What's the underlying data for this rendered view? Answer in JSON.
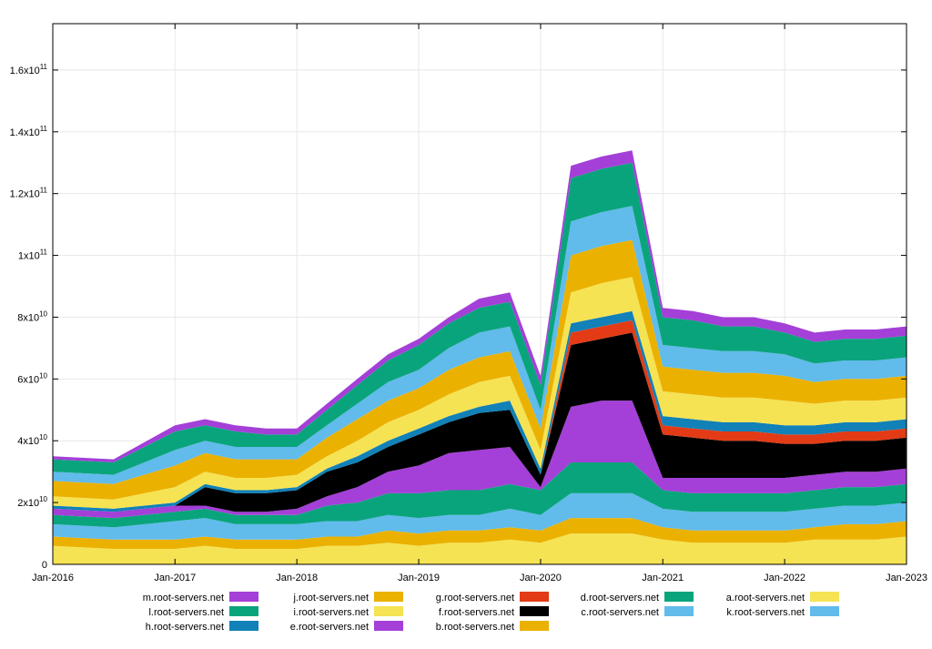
{
  "chart_data": {
    "type": "area",
    "stacked": true,
    "title": "",
    "xlabel": "",
    "ylabel": "",
    "xlim": [
      "2016-01-01",
      "2023-01-01"
    ],
    "ylim": [
      0,
      175000000000
    ],
    "grid": true,
    "legend_position": "bottom",
    "x_ticks": [
      {
        "date": "2016-01-01",
        "label": "Jan-2016"
      },
      {
        "date": "2017-01-01",
        "label": "Jan-2017"
      },
      {
        "date": "2018-01-01",
        "label": "Jan-2018"
      },
      {
        "date": "2019-01-01",
        "label": "Jan-2019"
      },
      {
        "date": "2020-01-01",
        "label": "Jan-2020"
      },
      {
        "date": "2021-01-01",
        "label": "Jan-2021"
      },
      {
        "date": "2022-01-01",
        "label": "Jan-2022"
      },
      {
        "date": "2023-01-01",
        "label": "Jan-2023"
      }
    ],
    "y_ticks": [
      {
        "value": 0,
        "mantissa": "0",
        "exponent": ""
      },
      {
        "value": 20000000000,
        "mantissa": "2x10",
        "exponent": "10"
      },
      {
        "value": 40000000000,
        "mantissa": "4x10",
        "exponent": "10"
      },
      {
        "value": 60000000000,
        "mantissa": "6x10",
        "exponent": "10"
      },
      {
        "value": 80000000000,
        "mantissa": "8x10",
        "exponent": "10"
      },
      {
        "value": 100000000000,
        "mantissa": "1x10",
        "exponent": "11"
      },
      {
        "value": 120000000000,
        "mantissa": "1.2x10",
        "exponent": "11"
      },
      {
        "value": 140000000000,
        "mantissa": "1.4x10",
        "exponent": "11"
      },
      {
        "value": 160000000000,
        "mantissa": "1.6x10",
        "exponent": "11"
      }
    ],
    "x": [
      "2016-01-01",
      "2016-07-01",
      "2017-01-01",
      "2017-04-01",
      "2017-07-01",
      "2017-10-01",
      "2018-01-01",
      "2018-04-01",
      "2018-07-01",
      "2018-10-01",
      "2019-01-01",
      "2019-04-01",
      "2019-07-01",
      "2019-10-01",
      "2020-01-01",
      "2020-04-01",
      "2020-07-01",
      "2020-10-01",
      "2021-01-01",
      "2021-04-01",
      "2021-07-01",
      "2021-10-01",
      "2022-01-01",
      "2022-04-01",
      "2022-07-01",
      "2022-10-01",
      "2023-01-01"
    ],
    "series": [
      {
        "name": "a.root-servers.net",
        "color": "#f5e354",
        "values": [
          6,
          5,
          5,
          6,
          5,
          5,
          5,
          6,
          6,
          7,
          6,
          7,
          7,
          8,
          7,
          10,
          10,
          10,
          8,
          7,
          7,
          7,
          7,
          8,
          8,
          8,
          9
        ]
      },
      {
        "name": "b.root-servers.net",
        "color": "#ebb100",
        "values": [
          3,
          3,
          3,
          3,
          3,
          3,
          3,
          3,
          3,
          4,
          4,
          4,
          4,
          4,
          4,
          5,
          5,
          5,
          4,
          4,
          4,
          4,
          4,
          4,
          5,
          5,
          5
        ]
      },
      {
        "name": "c.root-servers.net",
        "color": "#61bbeb",
        "values": [
          4,
          4,
          6,
          6,
          5,
          5,
          5,
          5,
          5,
          5,
          5,
          5,
          5,
          6,
          5,
          8,
          8,
          8,
          6,
          6,
          6,
          6,
          6,
          6,
          6,
          6,
          6
        ]
      },
      {
        "name": "d.root-servers.net",
        "color": "#0aa47c",
        "values": [
          3,
          3,
          3,
          3,
          3,
          3,
          3,
          5,
          6,
          7,
          8,
          8,
          8,
          8,
          8,
          10,
          10,
          10,
          6,
          6,
          6,
          6,
          6,
          6,
          6,
          6,
          6
        ]
      },
      {
        "name": "e.root-servers.net",
        "color": "#a43fd8",
        "values": [
          2,
          2,
          2,
          1,
          1,
          1,
          2,
          3,
          5,
          7,
          9,
          12,
          13,
          12,
          1,
          18,
          20,
          20,
          4,
          5,
          5,
          5,
          5,
          5,
          5,
          5,
          5
        ]
      },
      {
        "name": "f.root-servers.net",
        "color": "#000000",
        "values": [
          0,
          0,
          0,
          6,
          6,
          6,
          6,
          8,
          8,
          8,
          10,
          10,
          12,
          12,
          4,
          20,
          20,
          22,
          14,
          13,
          12,
          12,
          11,
          10,
          10,
          10,
          10
        ]
      },
      {
        "name": "g.root-servers.net",
        "color": "#e23b16",
        "values": [
          0,
          0,
          0,
          0,
          0,
          0,
          0,
          0,
          0,
          0,
          0,
          0,
          0,
          0,
          0,
          4,
          4,
          4,
          3,
          3,
          3,
          3,
          3,
          3,
          3,
          3,
          3
        ]
      },
      {
        "name": "h.root-servers.net",
        "color": "#1181b8",
        "values": [
          1,
          1,
          1,
          1,
          1,
          1,
          1,
          1,
          2,
          2,
          2,
          2,
          2,
          3,
          2,
          3,
          3,
          3,
          3,
          3,
          3,
          3,
          3,
          3,
          3,
          3,
          3
        ]
      },
      {
        "name": "i.root-servers.net",
        "color": "#f5e354",
        "values": [
          3,
          3,
          5,
          4,
          4,
          4,
          4,
          4,
          5,
          6,
          6,
          7,
          8,
          8,
          6,
          10,
          11,
          11,
          8,
          8,
          8,
          8,
          8,
          7,
          7,
          7,
          7
        ]
      },
      {
        "name": "j.root-servers.net",
        "color": "#ebb100",
        "values": [
          5,
          5,
          7,
          6,
          6,
          6,
          5,
          6,
          7,
          7,
          7,
          8,
          8,
          8,
          7,
          12,
          12,
          12,
          8,
          8,
          8,
          8,
          8,
          7,
          7,
          7,
          7
        ]
      },
      {
        "name": "k.root-servers.net",
        "color": "#61bbeb",
        "values": [
          3,
          3,
          5,
          4,
          4,
          4,
          4,
          4,
          5,
          6,
          6,
          7,
          8,
          8,
          6,
          11,
          11,
          11,
          7,
          7,
          7,
          7,
          7,
          6,
          6,
          6,
          6
        ]
      },
      {
        "name": "l.root-servers.net",
        "color": "#0aa47c",
        "values": [
          4,
          4,
          6,
          5,
          5,
          4,
          4,
          5,
          6,
          7,
          8,
          8,
          8,
          8,
          8,
          14,
          14,
          14,
          9,
          9,
          8,
          8,
          7,
          7,
          7,
          7,
          7
        ]
      },
      {
        "name": "m.root-servers.net",
        "color": "#a43fd8",
        "values": [
          1,
          1,
          2,
          2,
          2,
          2,
          2,
          2,
          2,
          2,
          2,
          2,
          3,
          3,
          3,
          4,
          4,
          4,
          3,
          3,
          3,
          3,
          3,
          3,
          3,
          3,
          3
        ]
      }
    ],
    "value_unit_multiplier": 1000000000,
    "legend": [
      {
        "label": "m.root-servers.net",
        "color": "#a43fd8"
      },
      {
        "label": "j.root-servers.net",
        "color": "#ebb100"
      },
      {
        "label": "g.root-servers.net",
        "color": "#e23b16"
      },
      {
        "label": "d.root-servers.net",
        "color": "#0aa47c"
      },
      {
        "label": "a.root-servers.net",
        "color": "#f5e354"
      },
      {
        "label": "l.root-servers.net",
        "color": "#0aa47c"
      },
      {
        "label": "i.root-servers.net",
        "color": "#f5e354"
      },
      {
        "label": "f.root-servers.net",
        "color": "#000000"
      },
      {
        "label": "c.root-servers.net",
        "color": "#61bbeb"
      },
      {
        "label": "k.root-servers.net",
        "color": "#61bbeb"
      },
      {
        "label": "h.root-servers.net",
        "color": "#1181b8"
      },
      {
        "label": "e.root-servers.net",
        "color": "#a43fd8"
      },
      {
        "label": "b.root-servers.net",
        "color": "#ebb100"
      }
    ]
  }
}
